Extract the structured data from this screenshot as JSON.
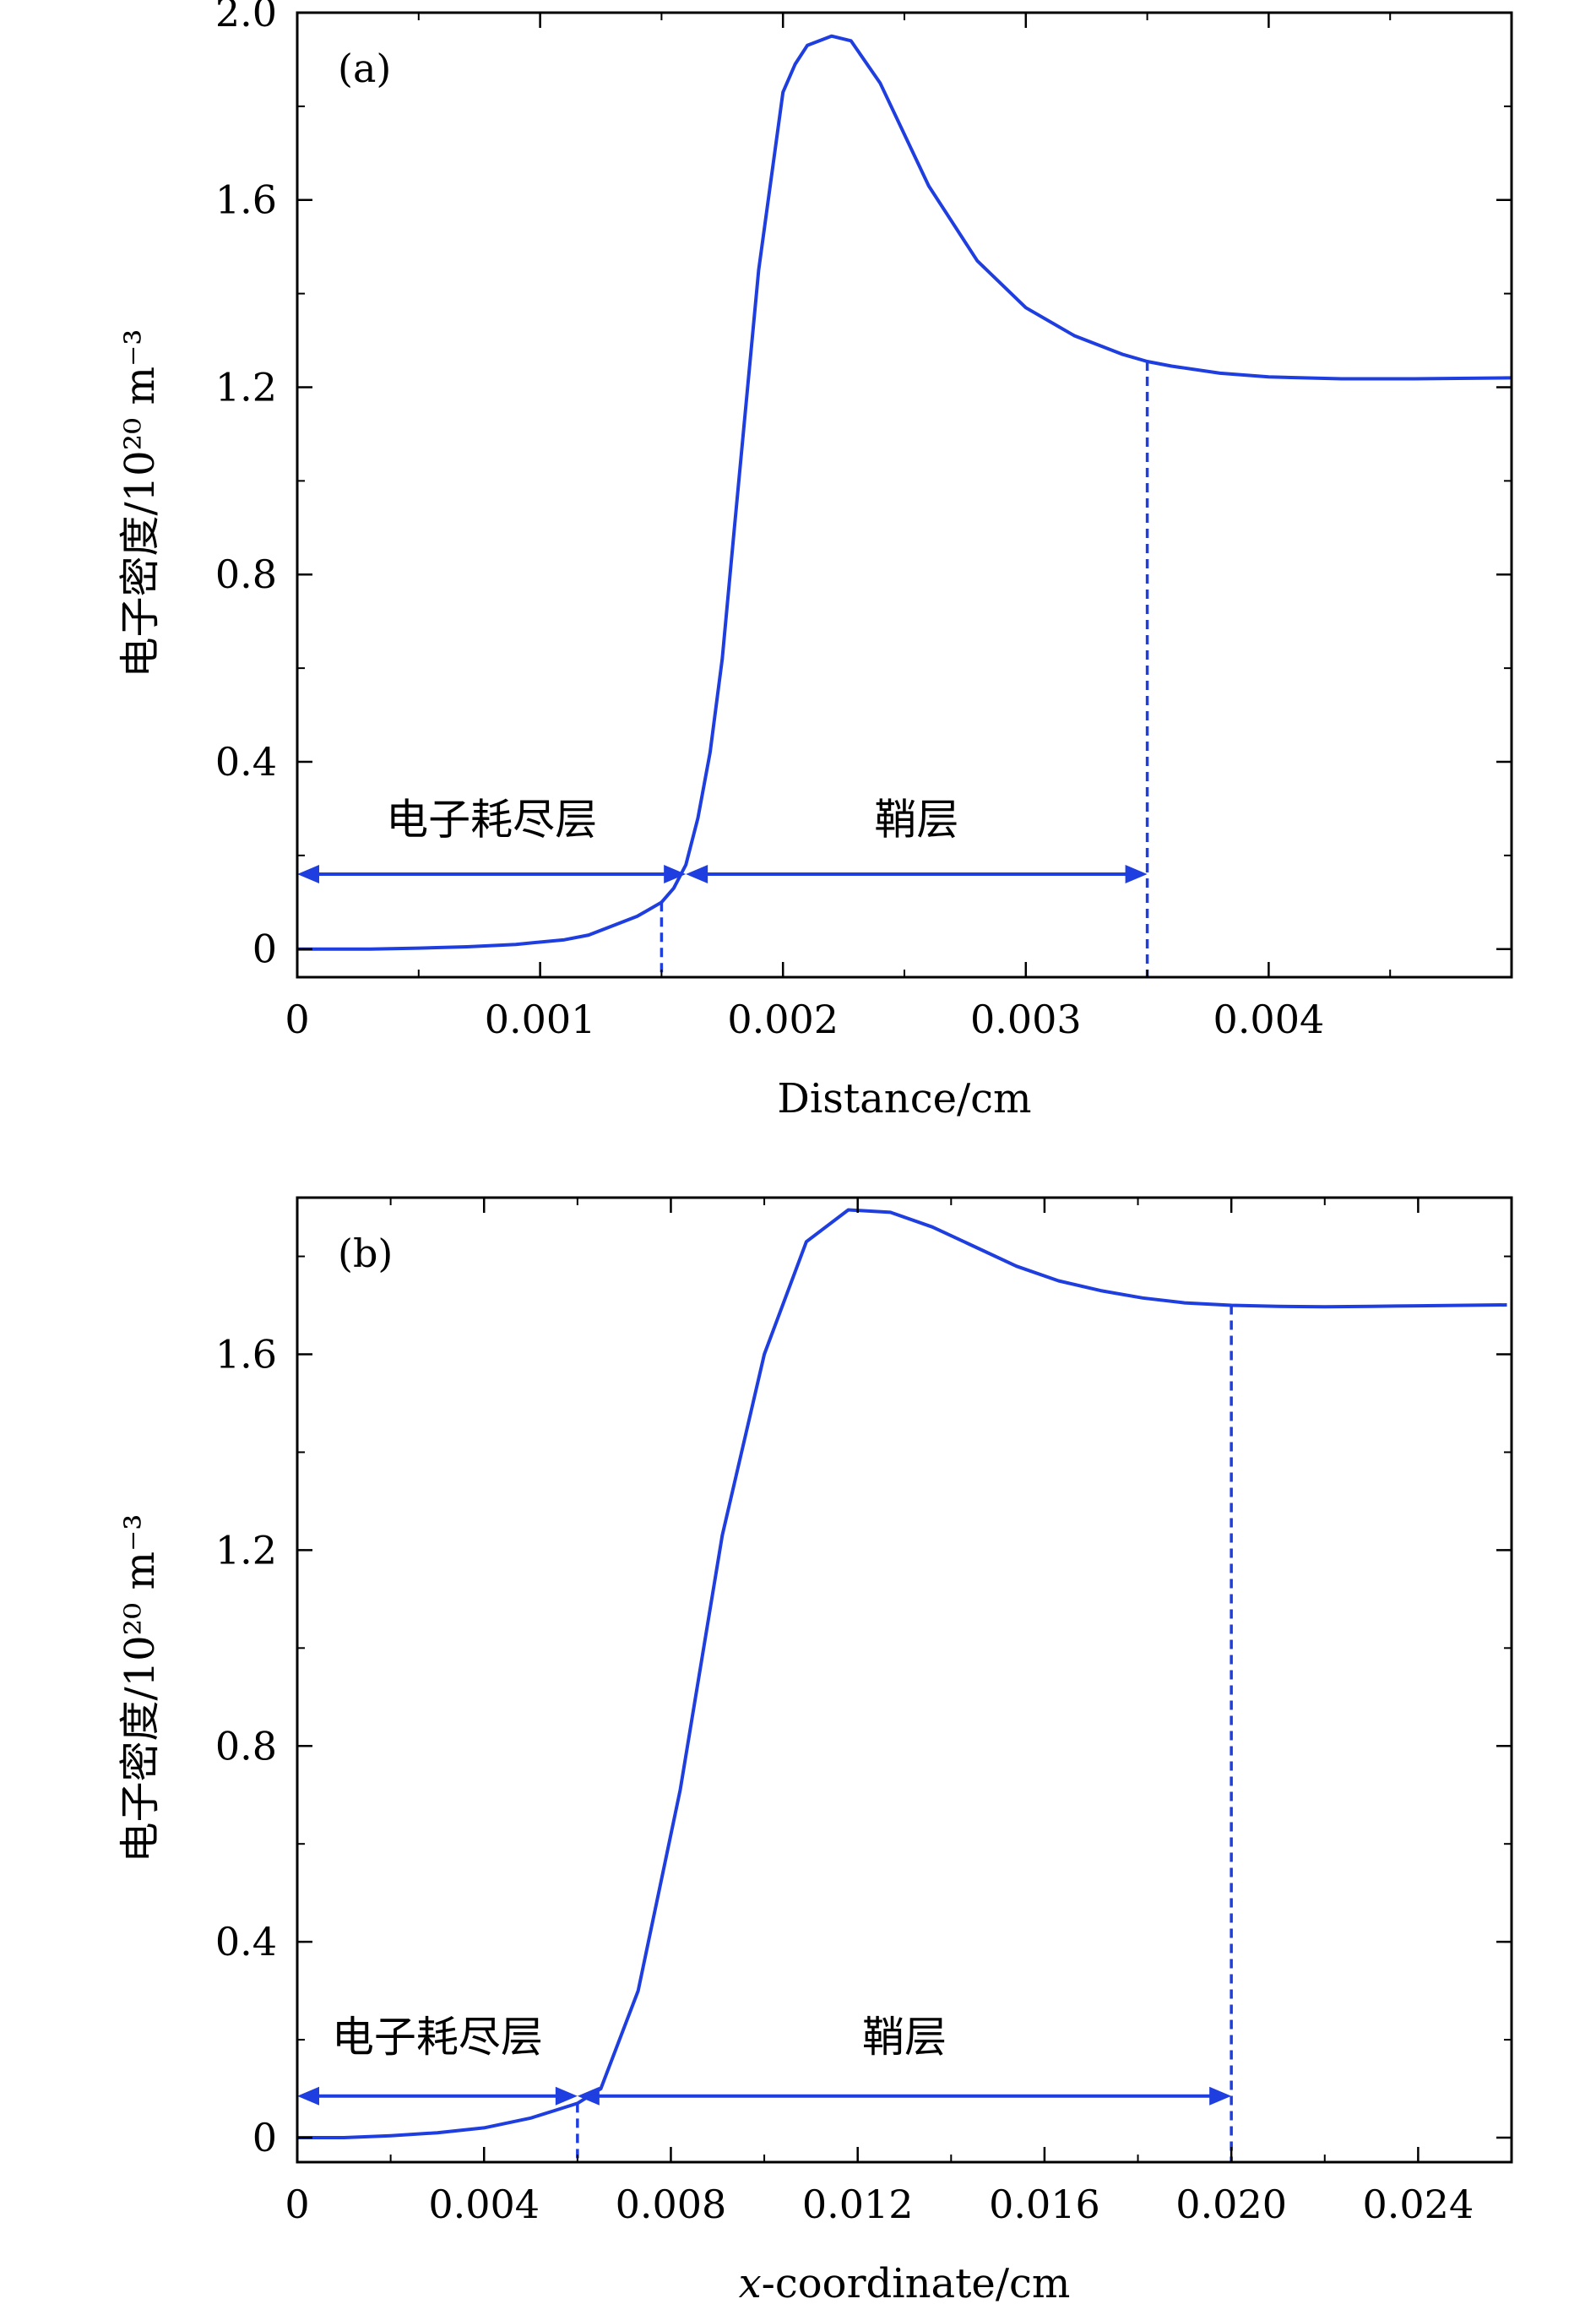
{
  "chart_data": [
    {
      "type": "line",
      "panel_label": "(a)",
      "xlabel": "Distance/cm",
      "ylabel": "电子密度/10²⁰ m⁻³",
      "xlim": [
        0,
        0.005
      ],
      "ylim": [
        -0.06,
        2.0
      ],
      "x_ticks": [
        {
          "value": 0,
          "label": "0"
        },
        {
          "value": 0.001,
          "label": "0.001"
        },
        {
          "value": 0.002,
          "label": "0.002"
        },
        {
          "value": 0.003,
          "label": "0.003"
        },
        {
          "value": 0.004,
          "label": "0.004"
        }
      ],
      "y_ticks": [
        {
          "value": 0,
          "label": "0"
        },
        {
          "value": 0.4,
          "label": "0.4"
        },
        {
          "value": 0.8,
          "label": "0.8"
        },
        {
          "value": 1.2,
          "label": "1.2"
        },
        {
          "value": 1.6,
          "label": "1.6"
        },
        {
          "value": 2.0,
          "label": "2.0"
        }
      ],
      "x_minor_step": 0.0005,
      "y_minor_step": 0.2,
      "series": [
        {
          "color": "#1f3ee0",
          "x": [
            0,
            0.0003,
            0.0005,
            0.0007,
            0.0009,
            0.0011,
            0.0012,
            0.0013,
            0.0014,
            0.0015,
            0.00155,
            0.0016,
            0.00165,
            0.0017,
            0.00175,
            0.0018,
            0.0019,
            0.002,
            0.00205,
            0.0021,
            0.0022,
            0.00228,
            0.0024,
            0.0026,
            0.0028,
            0.003,
            0.0032,
            0.0034,
            0.0035,
            0.0036,
            0.0038,
            0.004,
            0.0043,
            0.0046,
            0.005
          ],
          "y": [
            0,
            0.0,
            0.002,
            0.005,
            0.01,
            0.02,
            0.03,
            0.05,
            0.07,
            0.1,
            0.13,
            0.18,
            0.28,
            0.42,
            0.62,
            0.9,
            1.45,
            1.83,
            1.89,
            1.93,
            1.95,
            1.94,
            1.85,
            1.63,
            1.47,
            1.37,
            1.31,
            1.27,
            1.255,
            1.245,
            1.23,
            1.222,
            1.218,
            1.218,
            1.22
          ]
        }
      ],
      "reference_lines": [
        {
          "x": 0.0015,
          "y_top": 0.1
        },
        {
          "x": 0.0035,
          "y_top": 1.255
        }
      ],
      "regions": [
        {
          "label": "电子耗尽层",
          "from": 0,
          "to": 0.0016,
          "arrow_y": 0.16,
          "label_y": 0.26
        },
        {
          "label": "鞘层",
          "from": 0.0016,
          "to": 0.0035,
          "arrow_y": 0.16,
          "label_y": 0.26
        }
      ]
    },
    {
      "type": "line",
      "panel_label": "(b)",
      "xlabel": "x-coordinate/cm",
      "ylabel": "电子密度/10²⁰ m⁻³",
      "xlim": [
        0,
        0.026
      ],
      "ylim": [
        -0.05,
        1.92
      ],
      "x_ticks": [
        {
          "value": 0,
          "label": "0"
        },
        {
          "value": 0.004,
          "label": "0.004"
        },
        {
          "value": 0.008,
          "label": "0.008"
        },
        {
          "value": 0.012,
          "label": "0.012"
        },
        {
          "value": 0.016,
          "label": "0.016"
        },
        {
          "value": 0.02,
          "label": "0.020"
        },
        {
          "value": 0.024,
          "label": "0.024"
        }
      ],
      "y_ticks": [
        {
          "value": 0,
          "label": "0"
        },
        {
          "value": 0.4,
          "label": "0.4"
        },
        {
          "value": 0.8,
          "label": "0.8"
        },
        {
          "value": 1.2,
          "label": "1.2"
        },
        {
          "value": 1.6,
          "label": "1.6"
        }
      ],
      "x_minor_step": 0.002,
      "y_minor_step": 0.2,
      "series": [
        {
          "color": "#1f3ee0",
          "x": [
            0,
            0.001,
            0.002,
            0.003,
            0.004,
            0.005,
            0.0055,
            0.006,
            0.0065,
            0.0073,
            0.0082,
            0.0091,
            0.01,
            0.0109,
            0.0118,
            0.0127,
            0.0136,
            0.0145,
            0.0154,
            0.0163,
            0.0172,
            0.0181,
            0.019,
            0.02,
            0.021,
            0.022,
            0.023,
            0.024,
            0.025,
            0.0259
          ],
          "y": [
            0,
            0.0,
            0.004,
            0.01,
            0.02,
            0.04,
            0.055,
            0.07,
            0.1,
            0.3,
            0.71,
            1.23,
            1.6,
            1.83,
            1.895,
            1.89,
            1.86,
            1.82,
            1.78,
            1.75,
            1.73,
            1.715,
            1.705,
            1.7,
            1.698,
            1.697,
            1.698,
            1.699,
            1.7,
            1.701
          ]
        }
      ],
      "reference_lines": [
        {
          "x": 0.006,
          "y_top": 0.07
        },
        {
          "x": 0.02,
          "y_top": 1.7
        }
      ],
      "regions": [
        {
          "label": "电子耗尽层",
          "from": 0,
          "to": 0.006,
          "arrow_y": 0.085,
          "label_y": 0.19
        },
        {
          "label": "鞘层",
          "from": 0.006,
          "to": 0.02,
          "arrow_y": 0.085,
          "label_y": 0.19
        }
      ]
    }
  ]
}
